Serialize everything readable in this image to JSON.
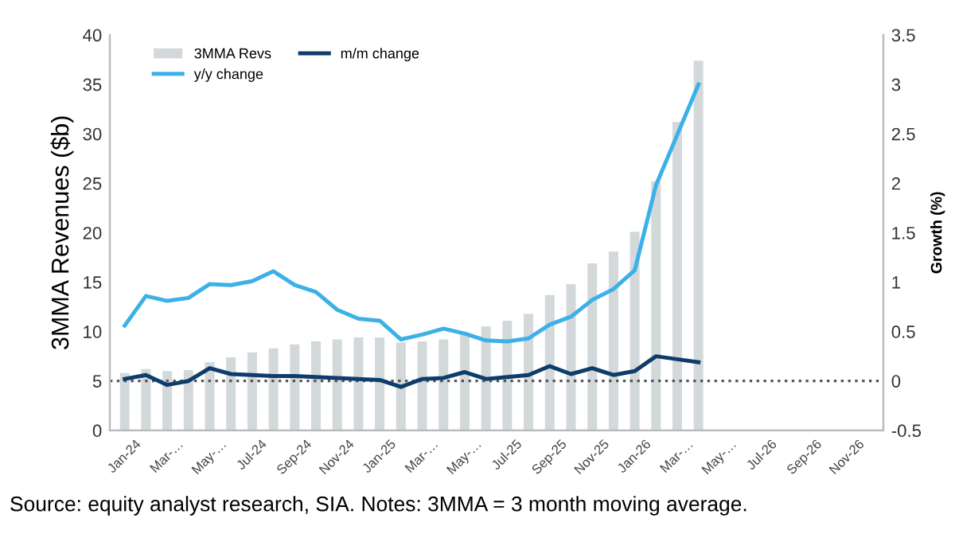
{
  "chart_data": {
    "type": "bar",
    "categories": [
      "Jan-24",
      null,
      "Mar-…",
      null,
      "May-…",
      null,
      "Jul-24",
      null,
      "Sep-24",
      null,
      "Nov-24",
      null,
      "Jan-25",
      null,
      "Mar-…",
      null,
      "May-…",
      null,
      "Jul-25",
      null,
      "Sep-25",
      null,
      "Nov-25",
      null,
      "Jan-26",
      null,
      "Mar-…",
      null,
      "May-…",
      null,
      "Jul-26",
      null,
      "Sep-26",
      null,
      "Nov-26",
      null
    ],
    "series": [
      {
        "name": "3MMA Revs",
        "color": "#d3d8db",
        "values": [
          5.8,
          6.2,
          6.0,
          6.1,
          6.9,
          7.4,
          7.9,
          8.3,
          8.7,
          9.0,
          9.2,
          9.4,
          9.4,
          8.9,
          9.0,
          9.2,
          9.9,
          10.5,
          11.1,
          11.8,
          13.7,
          14.8,
          16.9,
          18.1,
          20.1,
          25.2,
          31.2,
          37.4,
          null,
          null,
          null,
          null,
          null,
          null,
          null,
          null
        ]
      },
      {
        "name": "m/m change",
        "type": "line",
        "axis": "y2",
        "color": "#0e3d6b",
        "values": [
          0.02,
          0.06,
          -0.04,
          0.0,
          0.13,
          0.07,
          0.06,
          0.05,
          0.05,
          0.04,
          0.03,
          0.02,
          0.01,
          -0.06,
          0.02,
          0.03,
          0.09,
          0.02,
          0.04,
          0.06,
          0.15,
          0.07,
          0.13,
          0.06,
          0.1,
          0.25,
          0.22,
          0.19,
          null,
          null,
          null,
          null,
          null,
          null,
          null,
          null
        ]
      },
      {
        "name": "y/y change",
        "type": "line",
        "axis": "y2",
        "color": "#3cb1e8",
        "values": [
          0.56,
          0.86,
          0.81,
          0.84,
          0.98,
          0.97,
          1.01,
          1.11,
          0.97,
          0.9,
          0.72,
          0.63,
          0.61,
          0.42,
          0.47,
          0.53,
          0.48,
          0.41,
          0.4,
          0.43,
          0.57,
          0.65,
          0.82,
          0.93,
          1.12,
          1.98,
          2.49,
          3.0,
          null,
          null,
          null,
          null,
          null,
          null,
          null,
          null
        ]
      }
    ],
    "ylabel": "3MMA Revenues ($b)",
    "y2label": "Growth (%)",
    "ylim": [
      0,
      40
    ],
    "yticks": [
      0,
      5,
      10,
      15,
      20,
      25,
      30,
      35,
      40
    ],
    "y2lim": [
      -0.5,
      3.5
    ],
    "y2ticks": [
      -0.5,
      0,
      0.5,
      1,
      1.5,
      2,
      2.5,
      3,
      3.5
    ],
    "ref_lines": [
      {
        "axis": "y2",
        "value": 0,
        "color": "#555555",
        "line_style": "dotted"
      }
    ],
    "legend": "top left",
    "grid": false,
    "marker": "none",
    "line_style": "solid",
    "annotations": [
      "Source: equity analyst research, SIA. Notes: 3MMA = 3 month moving average."
    ]
  }
}
